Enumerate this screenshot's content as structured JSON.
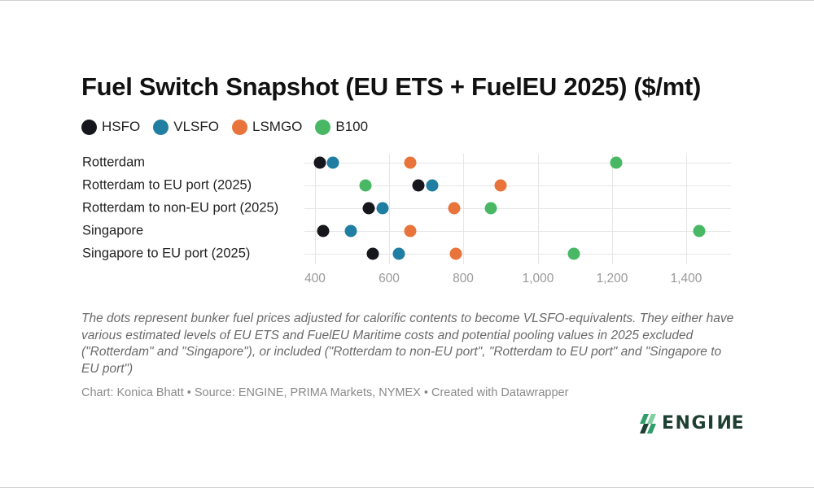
{
  "header": {
    "title": "Fuel Switch Snapshot (EU ETS + FuelEU 2025) ($/mt)"
  },
  "legend": [
    {
      "label": "HSFO",
      "color": "#16161d"
    },
    {
      "label": "VLSFO",
      "color": "#1f7ea1"
    },
    {
      "label": "LSMGO",
      "color": "#e8743b"
    },
    {
      "label": "B100",
      "color": "#49b865"
    }
  ],
  "axis": {
    "ticks": [
      "400",
      "600",
      "800",
      "1,000",
      "1,200",
      "1,400"
    ]
  },
  "footer": {
    "note": "The dots represent bunker fuel prices adjusted for calorific contents to become VLSFO-equivalents. They either have various estimated levels of EU ETS and FuelEU Maritime costs and potential pooling values in 2025 excluded (\"Rotterdam\" and \"Singapore\"), or included (\"Rotterdam to non-EU port\", \"Rotterdam to EU port\" and \"Singapore to EU port\")",
    "credit": "Chart: Konica Bhatt • Source: ENGINE, PRIMA Markets, NYMEX • Created with Datawrapper"
  },
  "logo": {
    "text_prefix": "ENGI",
    "text_rev": "N",
    "text_suffix": "E"
  },
  "chart_data": {
    "type": "scatter",
    "title": "Fuel Switch Snapshot (EU ETS + FuelEU 2025) ($/mt)",
    "xlabel": "",
    "ylabel": "",
    "xlim": [
      380,
      1490
    ],
    "x_ticks": [
      400,
      600,
      800,
      1000,
      1200,
      1400
    ],
    "grid": true,
    "legend_position": "top",
    "categories": [
      "Rotterdam",
      "Rotterdam to EU port (2025)",
      "Rotterdam to non-EU port (2025)",
      "Singapore",
      "Singapore to EU port (2025)"
    ],
    "series": [
      {
        "name": "HSFO",
        "color": "#16161d",
        "values": [
          413,
          678,
          544,
          421,
          555
        ]
      },
      {
        "name": "VLSFO",
        "color": "#1f7ea1",
        "values": [
          448,
          716,
          581,
          496,
          626
        ]
      },
      {
        "name": "LSMGO",
        "color": "#e8743b",
        "values": [
          656,
          899,
          774,
          656,
          779
        ]
      },
      {
        "name": "B100",
        "color": "#49b865",
        "values": [
          1212,
          536,
          873,
          1435,
          1098
        ]
      }
    ]
  }
}
